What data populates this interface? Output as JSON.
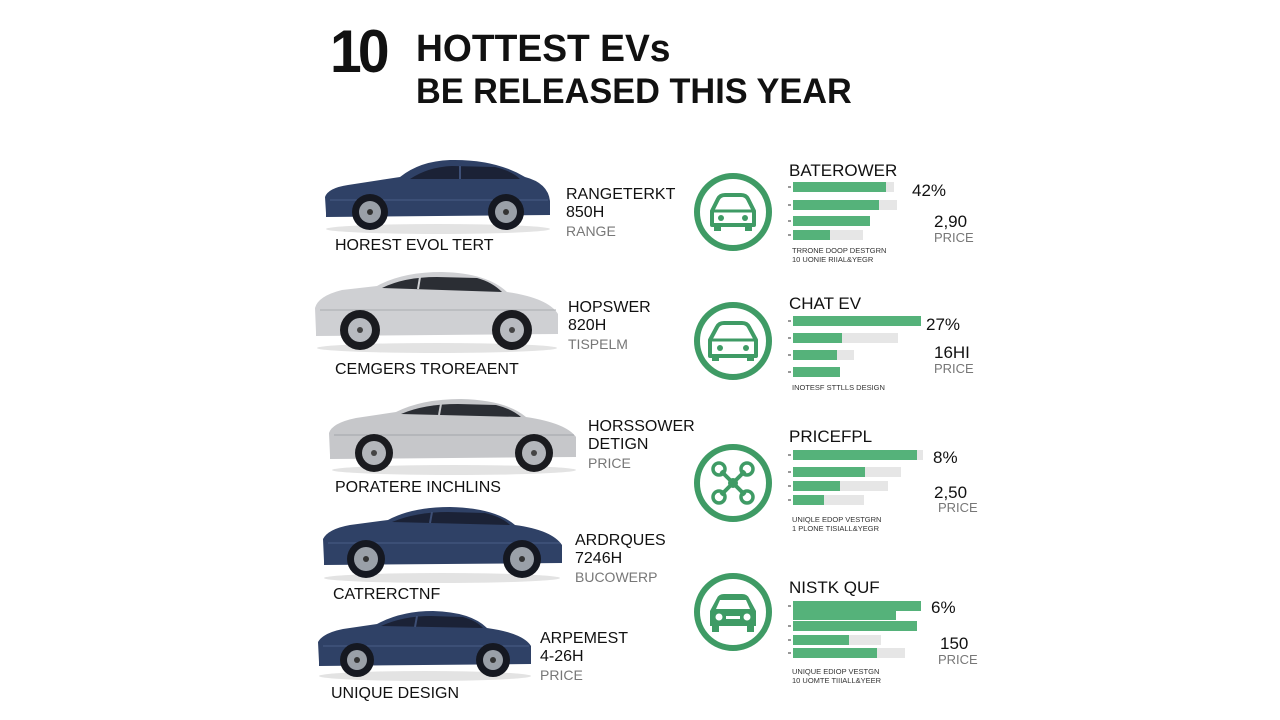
{
  "header": {
    "number": "10",
    "line1": "HOTTEST EVs",
    "line2": "BE RELEASED THIS YEAR"
  },
  "colors": {
    "accent": "#3f9b65",
    "bar": "#55b27a",
    "car_blue": "#2f4166",
    "car_silver": "#c9cacc"
  },
  "cars": [
    {
      "spec1": "RANGETERKT",
      "spec2": "850H",
      "spec3": "RANGE",
      "caption": "HOREST EVOL TERT"
    },
    {
      "spec1": "HOPSWER",
      "spec2": "820H",
      "spec3": "TISPELM",
      "caption": "CEMGERS TROREAENT"
    },
    {
      "spec1": "HORSSOWER",
      "spec2": "DETIGN",
      "spec3": "PRICE",
      "caption": "PORATERE INCHLINS"
    },
    {
      "spec1": "ARDRQUES",
      "spec2": "7246H",
      "spec3": "BUCOWERP",
      "caption": "CATRERCTNF"
    },
    {
      "spec1": "ARPEMEST",
      "spec2": "4-26H",
      "spec3": "PRICE",
      "caption": "UNIQUE DESIGN"
    }
  ],
  "stats": [
    {
      "icon": "car-front-icon",
      "title": "BATEROWER",
      "percent": "42%",
      "value": "2,90",
      "unit": "PRICE",
      "bars": [
        0.89,
        0.85,
        0.75,
        0.67
      ],
      "footer1": "TRRONE DOOP DESTGRN",
      "footer2": "10 UONIE RIIAL&YEGR"
    },
    {
      "icon": "car-front-icon",
      "title": "CHAT EV",
      "percent": "27%",
      "value": "16HI",
      "unit": "PRICE",
      "bars": [
        1.0,
        0.72,
        0.43,
        0.41
      ],
      "footer1": "INOTESF STTLLS DESIGN",
      "footer2": ""
    },
    {
      "icon": "network-icon",
      "title": "PRICEFPL",
      "percent": "8%",
      "value": "2,50",
      "unit": "PRICE",
      "bars": [
        0.98,
        0.6,
        0.58,
        0.26
      ],
      "footer1": "UNIQLE EDOP VESTGRN",
      "footer2": "1 PLONE TISIALL&YEGR"
    },
    {
      "icon": "car-front-icon",
      "title": "NISTK QUF",
      "percent": "6%",
      "value": "150",
      "unit": "PRICE",
      "bars": [
        1.0,
        0.8,
        0.96,
        0.44,
        0.65
      ],
      "footer1": "UNIQUE EDIOP VESTGN",
      "footer2": "10 UOMTE TIIIALL&YEER"
    }
  ]
}
